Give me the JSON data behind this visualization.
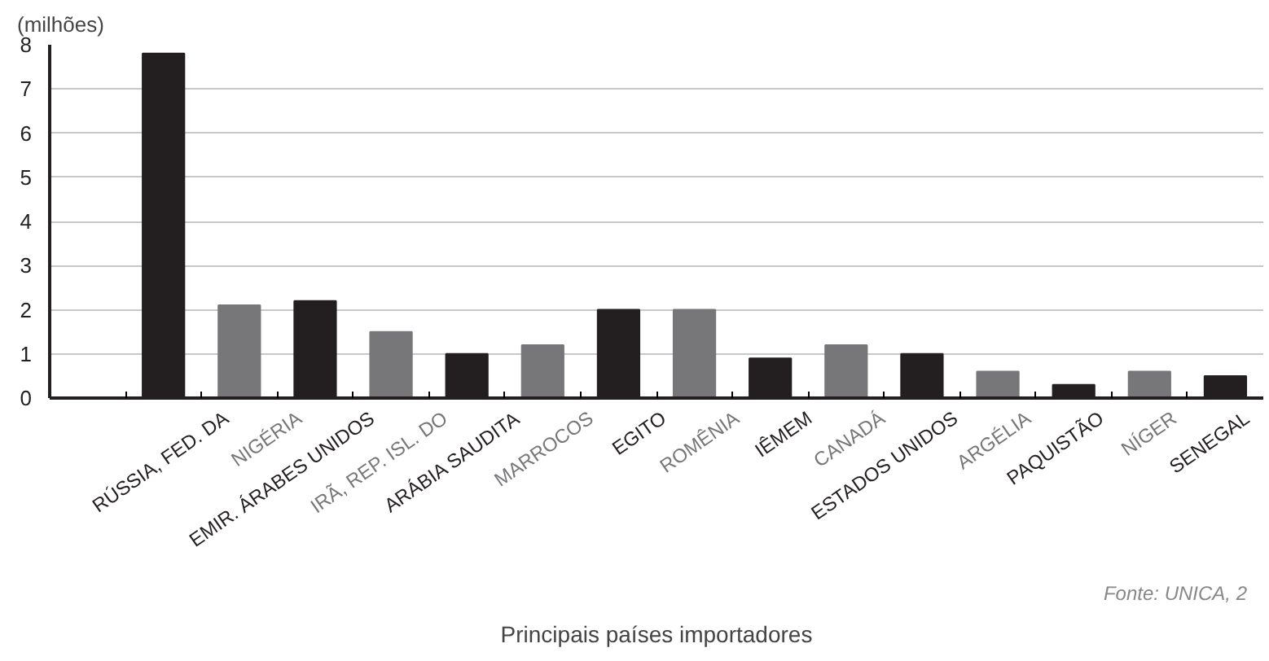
{
  "chart_data": {
    "type": "bar",
    "ylabel": "(milhões)",
    "xlabel": "Principais países importadores",
    "categories": [
      null,
      "RÚSSIA, FED. DA",
      "NIGÉRIA",
      "EMIR. ÁRABES UNIDOS",
      "IRÃ, REP. ISL. DO",
      "ARÁBIA SAUDITA",
      "MARROCOS",
      "EGITO",
      "ROMÊNIA",
      "IÊMEM",
      "CANADÁ",
      "ESTADOS UNIDOS",
      "ARGÉLIA",
      "PAQUISTÃO",
      "NÍGER",
      "SENEGAL"
    ],
    "values": [
      null,
      7.8,
      2.1,
      2.2,
      1.5,
      1.0,
      1.2,
      2.0,
      2.0,
      0.9,
      1.2,
      1.0,
      0.6,
      0.3,
      0.6,
      0.5
    ],
    "colors": [
      "#231f20",
      "#231f20",
      "#77777a",
      "#231f20",
      "#77777a",
      "#231f20",
      "#77777a",
      "#231f20",
      "#77777a",
      "#231f20",
      "#77777a",
      "#231f20",
      "#77777a",
      "#231f20",
      "#77777a",
      "#231f20"
    ],
    "ylim": [
      0,
      8
    ],
    "yticks": [
      0,
      1,
      2,
      3,
      4,
      5,
      6,
      7,
      8
    ],
    "grid": "y",
    "annotations": [
      "Fonte: UNICA, 2"
    ]
  }
}
